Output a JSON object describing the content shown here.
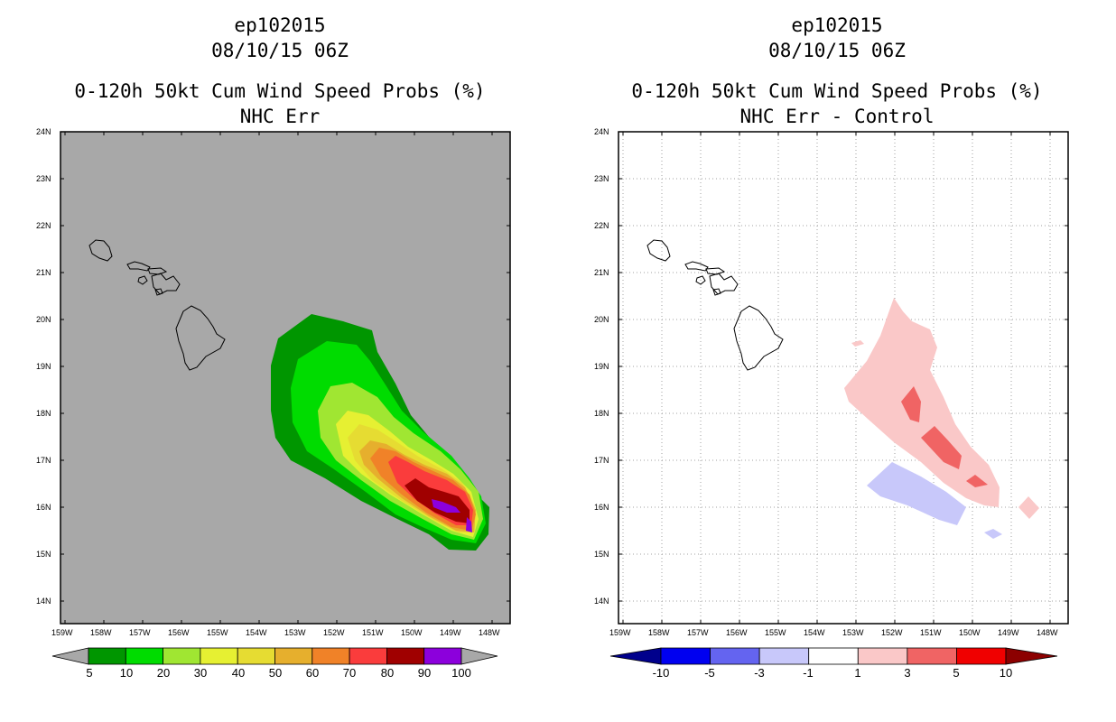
{
  "left_panel": {
    "storm": "ep102015",
    "datetime": "08/10/15 06Z",
    "product": "0-120h 50kt Cum Wind Speed Probs (%)",
    "subtitle": "NHC Err",
    "background_color": "#a8a8a8",
    "colorbar": {
      "labels": [
        "5",
        "10",
        "20",
        "30",
        "40",
        "50",
        "60",
        "70",
        "80",
        "90",
        "100"
      ],
      "colors": [
        "#009600",
        "#00dc00",
        "#a0e632",
        "#e6f032",
        "#e6dc32",
        "#e6af2d",
        "#f08228",
        "#fa3c3c",
        "#a00000",
        "#8c00dc"
      ]
    }
  },
  "right_panel": {
    "storm": "ep102015",
    "datetime": "08/10/15 06Z",
    "product": "0-120h 50kt Cum Wind Speed Probs (%)",
    "subtitle": "NHC Err - Control",
    "background_color": "#ffffff",
    "colorbar": {
      "labels": [
        "-10",
        "-5",
        "-3",
        "-1",
        "1",
        "3",
        "5",
        "10"
      ],
      "colors": [
        "#00008c",
        "#0000f0",
        "#6464f0",
        "#c8c8fa",
        "#ffffff",
        "#fac8c8",
        "#f06464",
        "#f00000",
        "#8c0000"
      ]
    }
  },
  "map": {
    "lat_labels": [
      "24N",
      "23N",
      "22N",
      "21N",
      "20N",
      "19N",
      "18N",
      "17N",
      "16N",
      "15N",
      "14N"
    ],
    "lon_labels": [
      "159W",
      "158W",
      "157W",
      "156W",
      "155W",
      "154W",
      "153W",
      "152W",
      "151W",
      "150W",
      "149W",
      "148W"
    ]
  }
}
